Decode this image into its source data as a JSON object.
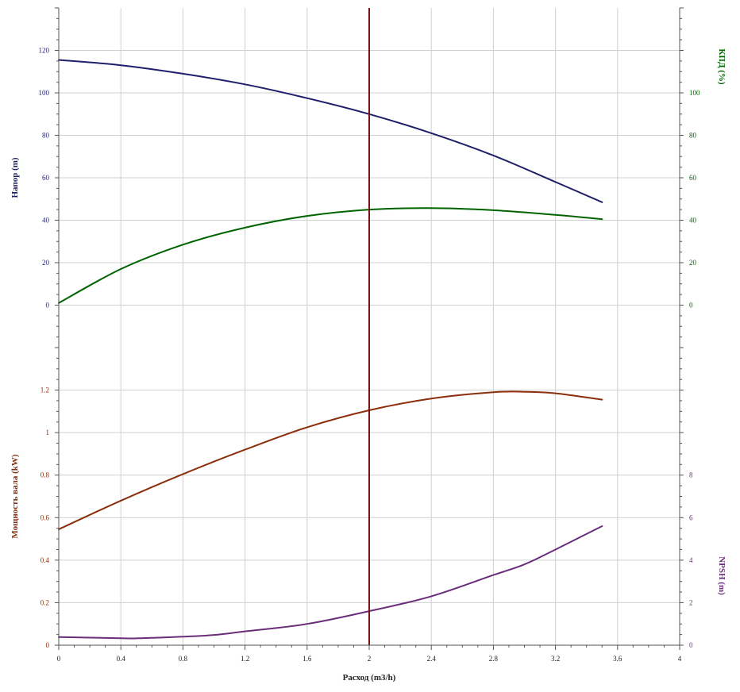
{
  "colors": {
    "head": "#1f1f6b",
    "efficiency": "#006400",
    "power": "#8b2e0b",
    "npsh": "#6a2d7a",
    "operating_point": "#7a1414",
    "grid": "#cfcfcf",
    "axis": "#555555"
  },
  "chart_data": {
    "type": "line",
    "x_axis": {
      "label": "Расход (m3/h)",
      "range": [
        0,
        4
      ],
      "ticks": [
        "0",
        "0.4",
        "0.8",
        "1.2",
        "1.6",
        "2",
        "2.4",
        "2.8",
        "3.2",
        "3.6",
        "4"
      ]
    },
    "operating_point_x": 2.0,
    "grid": true,
    "panels": [
      {
        "position": "top",
        "left_axis": {
          "label": "Напор (m)",
          "range": [
            -20,
            140
          ],
          "ticks": [
            "0",
            "20",
            "40",
            "60",
            "80",
            "100",
            "120"
          ],
          "tick_values": [
            0,
            20,
            40,
            60,
            80,
            100,
            120
          ]
        },
        "right_axis": {
          "label": "КПД (%)",
          "range": [
            -20,
            140
          ],
          "ticks": [
            "0",
            "20",
            "40",
            "60",
            "80",
            "100"
          ],
          "tick_values": [
            0,
            20,
            40,
            60,
            80,
            100
          ]
        },
        "series": [
          {
            "key": "head",
            "axis": "left",
            "x": [
              0,
              0.4,
              0.8,
              1.2,
              1.6,
              2.0,
              2.4,
              2.8,
              3.2,
              3.5
            ],
            "y": [
              115.5,
              113,
              109,
              104,
              97.5,
              90,
              81,
              70.5,
              58,
              48.5
            ]
          },
          {
            "key": "efficiency",
            "axis": "right",
            "x": [
              0,
              0.4,
              0.8,
              1.2,
              1.6,
              2.0,
              2.4,
              2.8,
              3.2,
              3.5
            ],
            "y": [
              1,
              17,
              28.5,
              36.5,
              42,
              45,
              45.7,
              44.7,
              42.5,
              40.5
            ]
          }
        ]
      },
      {
        "position": "bottom",
        "left_axis": {
          "label": "Мощность вала (kW)",
          "range": [
            0,
            1.4
          ],
          "ticks": [
            "0",
            "0.2",
            "0.4",
            "0.6",
            "0.8",
            "1",
            "1.2"
          ],
          "tick_values": [
            0,
            0.2,
            0.4,
            0.6,
            0.8,
            1.0,
            1.2
          ]
        },
        "right_axis": {
          "label": "NPSH (m)",
          "range": [
            0,
            14
          ],
          "ticks": [
            "0",
            "2",
            "4",
            "6",
            "8"
          ],
          "tick_values": [
            0,
            2,
            4,
            6,
            8
          ]
        },
        "series": [
          {
            "key": "power",
            "axis": "left",
            "x": [
              0,
              0.4,
              0.8,
              1.2,
              1.6,
              2.0,
              2.4,
              2.8,
              3.0,
              3.2,
              3.5
            ],
            "y": [
              0.545,
              0.68,
              0.805,
              0.92,
              1.025,
              1.105,
              1.16,
              1.19,
              1.192,
              1.185,
              1.155
            ]
          },
          {
            "key": "npsh",
            "axis": "right",
            "x": [
              0,
              0.4,
              0.5,
              0.8,
              1.0,
              1.2,
              1.6,
              2.0,
              2.4,
              2.8,
              3.0,
              3.2,
              3.5
            ],
            "y": [
              0.38,
              0.33,
              0.32,
              0.4,
              0.48,
              0.65,
              1.0,
              1.6,
              2.3,
              3.3,
              3.8,
              4.5,
              5.6
            ]
          }
        ]
      }
    ]
  }
}
